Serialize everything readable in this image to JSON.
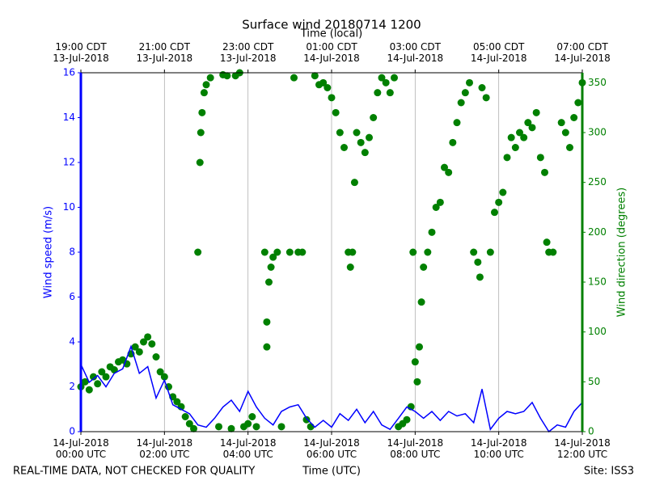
{
  "chart_data": {
    "type": "line",
    "title": "Surface wind 20180714 1200",
    "x2label": "Time (local)",
    "xlabel": "Time (UTC)",
    "ylabel": "Wind speed (m/s)",
    "y2label": "Wind direction (degrees)",
    "footer_left": "REAL-TIME DATA, NOT CHECKED FOR QUALITY",
    "footer_right": "Site: ISS3",
    "xlim": [
      0,
      12
    ],
    "xticks": [
      {
        "value": 0,
        "label": "14-Jul-2018\n00:00 UTC"
      },
      {
        "value": 2,
        "label": "14-Jul-2018\n02:00 UTC"
      },
      {
        "value": 4,
        "label": "14-Jul-2018\n04:00 UTC"
      },
      {
        "value": 6,
        "label": "14-Jul-2018\n06:00 UTC"
      },
      {
        "value": 8,
        "label": "14-Jul-2018\n08:00 UTC"
      },
      {
        "value": 10,
        "label": "14-Jul-2018\n10:00 UTC"
      },
      {
        "value": 12,
        "label": "14-Jul-2018\n12:00 UTC"
      }
    ],
    "x2ticks": [
      {
        "value": 0,
        "label": "19:00 CDT\n13-Jul-2018"
      },
      {
        "value": 2,
        "label": "21:00 CDT\n13-Jul-2018"
      },
      {
        "value": 4,
        "label": "23:00 CDT\n13-Jul-2018"
      },
      {
        "value": 6,
        "label": "01:00 CDT\n14-Jul-2018"
      },
      {
        "value": 8,
        "label": "03:00 CDT\n14-Jul-2018"
      },
      {
        "value": 10,
        "label": "05:00 CDT\n14-Jul-2018"
      },
      {
        "value": 12,
        "label": "07:00 CDT\n14-Jul-2018"
      }
    ],
    "ylim": [
      0,
      16
    ],
    "yticks": [
      0,
      2,
      4,
      6,
      8,
      10,
      12,
      14,
      16
    ],
    "y2lim": [
      0,
      360
    ],
    "y2ticks": [
      0,
      50,
      100,
      150,
      200,
      250,
      300,
      350
    ],
    "grid": "x",
    "series": [
      {
        "name": "Wind speed",
        "type": "line",
        "color": "#0000ff",
        "x": [
          0,
          0.2,
          0.4,
          0.6,
          0.8,
          1.0,
          1.2,
          1.4,
          1.6,
          1.8,
          2.0,
          2.2,
          2.4,
          2.6,
          2.8,
          3.0,
          3.2,
          3.4,
          3.6,
          3.8,
          4.0,
          4.2,
          4.4,
          4.6,
          4.8,
          5.0,
          5.2,
          5.4,
          5.6,
          5.8,
          6.0,
          6.2,
          6.4,
          6.6,
          6.8,
          7.0,
          7.2,
          7.4,
          7.6,
          7.8,
          8.0,
          8.2,
          8.4,
          8.6,
          8.8,
          9.0,
          9.2,
          9.4,
          9.6,
          9.8,
          10.0,
          10.2,
          10.4,
          10.6,
          10.8,
          11.0,
          11.2,
          11.4,
          11.6,
          11.8,
          12.0
        ],
        "values": [
          3.0,
          2.2,
          2.5,
          2.0,
          2.6,
          2.8,
          3.8,
          2.6,
          2.9,
          1.5,
          2.3,
          1.2,
          1.0,
          0.8,
          0.3,
          0.2,
          0.6,
          1.1,
          1.4,
          0.9,
          1.8,
          1.1,
          0.6,
          0.3,
          0.9,
          1.1,
          1.2,
          0.6,
          0.2,
          0.5,
          0.2,
          0.8,
          0.5,
          1.0,
          0.4,
          0.9,
          0.3,
          0.1,
          0.6,
          1.1,
          0.9,
          0.6,
          0.9,
          0.5,
          0.9,
          0.7,
          0.8,
          0.4,
          1.9,
          0.1,
          0.6,
          0.9,
          0.8,
          0.9,
          1.3,
          0.6,
          0.0,
          0.3,
          0.2,
          0.9,
          1.3
        ]
      },
      {
        "name": "Wind direction",
        "type": "scatter",
        "axis": "y2",
        "color": "#008000",
        "x": [
          0,
          0.1,
          0.2,
          0.3,
          0.4,
          0.5,
          0.6,
          0.7,
          0.8,
          0.9,
          1.0,
          1.1,
          1.2,
          1.3,
          1.4,
          1.5,
          1.6,
          1.7,
          1.8,
          1.9,
          2.0,
          2.1,
          2.2,
          2.3,
          2.4,
          2.5,
          2.6,
          2.7,
          2.8,
          2.85,
          2.87,
          2.9,
          2.95,
          3.0,
          3.1,
          3.3,
          3.4,
          3.5,
          3.6,
          3.7,
          3.8,
          3.9,
          4.0,
          4.1,
          4.2,
          4.4,
          4.45,
          4.45,
          4.5,
          4.55,
          4.6,
          4.7,
          4.8,
          5.0,
          5.1,
          5.2,
          5.3,
          5.4,
          5.5,
          5.6,
          5.7,
          5.8,
          5.9,
          6.0,
          6.1,
          6.2,
          6.3,
          6.4,
          6.45,
          6.5,
          6.55,
          6.6,
          6.7,
          6.8,
          6.9,
          7.0,
          7.1,
          7.2,
          7.3,
          7.4,
          7.5,
          7.6,
          7.7,
          7.8,
          7.9,
          7.95,
          8.0,
          8.05,
          8.1,
          8.15,
          8.2,
          8.3,
          8.4,
          8.5,
          8.6,
          8.7,
          8.8,
          8.9,
          9.0,
          9.1,
          9.2,
          9.3,
          9.4,
          9.5,
          9.55,
          9.6,
          9.7,
          9.8,
          9.9,
          10.0,
          10.1,
          10.2,
          10.3,
          10.4,
          10.5,
          10.6,
          10.7,
          10.8,
          10.9,
          11.0,
          11.1,
          11.15,
          11.2,
          11.3,
          11.5,
          11.6,
          11.7,
          11.8,
          11.9,
          12.0
        ],
        "values": [
          45,
          50,
          42,
          55,
          48,
          60,
          55,
          65,
          62,
          70,
          72,
          68,
          78,
          85,
          80,
          90,
          95,
          88,
          75,
          60,
          55,
          45,
          35,
          30,
          25,
          15,
          8,
          3,
          180,
          270,
          300,
          320,
          340,
          348,
          355,
          5,
          358,
          357,
          3,
          357,
          360,
          5,
          8,
          15,
          5,
          180,
          110,
          85,
          150,
          165,
          175,
          180,
          5,
          180,
          355,
          180,
          180,
          12,
          5,
          357,
          348,
          350,
          345,
          335,
          320,
          300,
          285,
          180,
          165,
          180,
          250,
          300,
          290,
          280,
          295,
          315,
          340,
          355,
          350,
          340,
          355,
          5,
          8,
          12,
          25,
          180,
          70,
          50,
          85,
          130,
          165,
          180,
          200,
          225,
          230,
          265,
          260,
          290,
          310,
          330,
          340,
          350,
          180,
          170,
          155,
          345,
          335,
          180,
          220,
          230,
          240,
          275,
          295,
          285,
          300,
          295,
          310,
          305,
          320,
          275,
          260,
          190,
          180,
          180,
          310,
          300,
          285,
          315,
          330,
          350
        ]
      }
    ]
  }
}
